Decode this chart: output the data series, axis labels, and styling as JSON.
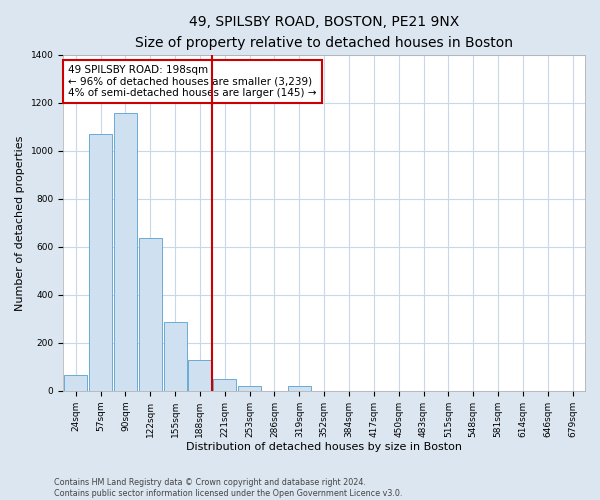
{
  "title": "49, SPILSBY ROAD, BOSTON, PE21 9NX",
  "subtitle": "Size of property relative to detached houses in Boston",
  "xlabel": "Distribution of detached houses by size in Boston",
  "ylabel": "Number of detached properties",
  "categories": [
    "24sqm",
    "57sqm",
    "90sqm",
    "122sqm",
    "155sqm",
    "188sqm",
    "221sqm",
    "253sqm",
    "286sqm",
    "319sqm",
    "352sqm",
    "384sqm",
    "417sqm",
    "450sqm",
    "483sqm",
    "515sqm",
    "548sqm",
    "581sqm",
    "614sqm",
    "646sqm",
    "679sqm"
  ],
  "values": [
    65,
    1070,
    1160,
    635,
    285,
    130,
    50,
    20,
    0,
    20,
    0,
    0,
    0,
    0,
    0,
    0,
    0,
    0,
    0,
    0,
    0
  ],
  "bar_color": "#cfe0f0",
  "bar_edge_color": "#6aaad4",
  "property_line_x": 5.5,
  "property_line_color": "#cc0000",
  "annotation_line1": "49 SPILSBY ROAD: 198sqm",
  "annotation_line2": "← 96% of detached houses are smaller (3,239)",
  "annotation_line3": "4% of semi-detached houses are larger (145) →",
  "annotation_box_facecolor": "#ffffff",
  "annotation_box_edgecolor": "#cc0000",
  "ylim": [
    0,
    1400
  ],
  "yticks": [
    0,
    200,
    400,
    600,
    800,
    1000,
    1200,
    1400
  ],
  "figure_facecolor": "#dce6f0",
  "axes_facecolor": "#ffffff",
  "grid_color": "#c8d8e8",
  "footer_line1": "Contains HM Land Registry data © Crown copyright and database right 2024.",
  "footer_line2": "Contains public sector information licensed under the Open Government Licence v3.0.",
  "title_fontsize": 10,
  "subtitle_fontsize": 9,
  "xlabel_fontsize": 8,
  "ylabel_fontsize": 8,
  "tick_fontsize": 6.5,
  "annotation_fontsize": 7.5,
  "footer_fontsize": 5.8
}
